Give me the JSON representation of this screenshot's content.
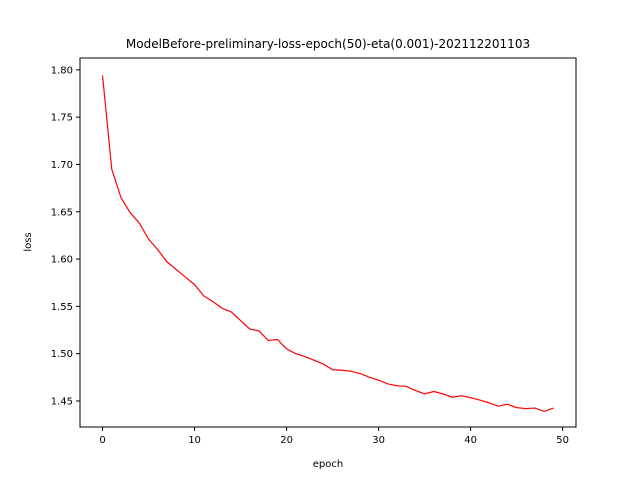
{
  "chart_data": {
    "type": "line",
    "title": "ModelBefore-preliminary-loss-epoch(50)-eta(0.001)-202112201103",
    "xlabel": "epoch",
    "ylabel": "loss",
    "xlim": [
      -2.45,
      51.45
    ],
    "ylim": [
      1.4225,
      1.8125
    ],
    "xticks": [
      0,
      10,
      20,
      30,
      40,
      50
    ],
    "yticks": [
      1.45,
      1.5,
      1.55,
      1.6,
      1.65,
      1.7,
      1.75,
      1.8
    ],
    "ytick_labels": [
      "1.45",
      "1.50",
      "1.55",
      "1.60",
      "1.65",
      "1.70",
      "1.75",
      "1.80"
    ],
    "grid": false,
    "series": [
      {
        "color": "#ff0000",
        "x": [
          0,
          1,
          2,
          3,
          4,
          5,
          6,
          7,
          8,
          9,
          10,
          11,
          12,
          13,
          14,
          15,
          16,
          17,
          18,
          19,
          20,
          21,
          22,
          23,
          24,
          25,
          26,
          27,
          28,
          29,
          30,
          31,
          32,
          33,
          34,
          35,
          36,
          37,
          38,
          39,
          40,
          41,
          42,
          43,
          44,
          45,
          46,
          47,
          48,
          49
        ],
        "values": [
          1.794,
          1.695,
          1.665,
          1.649,
          1.638,
          1.621,
          1.61,
          1.597,
          1.589,
          1.581,
          1.573,
          1.561,
          1.555,
          1.548,
          1.544,
          1.535,
          1.526,
          1.524,
          1.514,
          1.515,
          1.505,
          1.5,
          1.497,
          1.493,
          1.489,
          1.483,
          1.4825,
          1.4815,
          1.479,
          1.475,
          1.472,
          1.468,
          1.466,
          1.4655,
          1.461,
          1.4575,
          1.46,
          1.4575,
          1.454,
          1.4555,
          1.4535,
          1.451,
          1.448,
          1.4445,
          1.4465,
          1.443,
          1.442,
          1.4425,
          1.439,
          1.4425
        ]
      }
    ]
  }
}
